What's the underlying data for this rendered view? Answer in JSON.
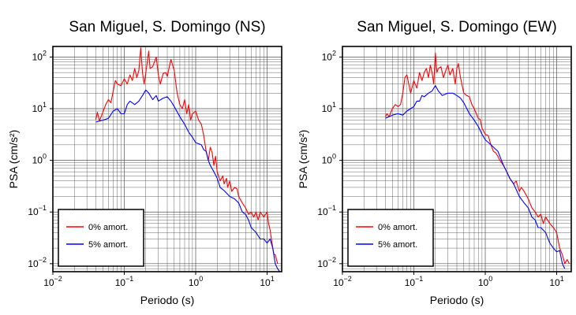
{
  "figure": {
    "panels": [
      {
        "title": "San Miguel, S. Domingo (NS)",
        "xlabel": "Periodo (s)",
        "ylabel": "PSA (cm/s²)"
      },
      {
        "title": "San Miguel, S. Domingo (EW)",
        "xlabel": "Periodo (s)",
        "ylabel": "PSA (cm/s²)"
      }
    ],
    "x_ticks": [
      {
        "value": 0.01,
        "base": "10",
        "exp": "−2"
      },
      {
        "value": 0.1,
        "base": "10",
        "exp": "−1"
      },
      {
        "value": 1,
        "base": "10",
        "exp": "0"
      },
      {
        "value": 10,
        "base": "10",
        "exp": "1"
      }
    ],
    "y_ticks": [
      {
        "value": 0.01,
        "base": "10",
        "exp": "−2"
      },
      {
        "value": 0.1,
        "base": "10",
        "exp": "−1"
      },
      {
        "value": 1,
        "base": "10",
        "exp": "0"
      },
      {
        "value": 10,
        "base": "10",
        "exp": "1"
      },
      {
        "value": 100,
        "base": "10",
        "exp": "2"
      }
    ],
    "colors": {
      "red": "#ff0000",
      "blue": "#0000ff",
      "grid": "#555555",
      "frame": "#000000"
    }
  },
  "chart_data": [
    {
      "type": "line",
      "title": "San Miguel, S. Domingo (NS)",
      "xlabel": "Periodo (s)",
      "ylabel": "PSA (cm/s²)",
      "x_scale": "log",
      "y_scale": "log",
      "xlim": [
        0.01,
        16
      ],
      "ylim": [
        0.007,
        160
      ],
      "grid": true,
      "legend_position": "bottom-left",
      "series": [
        {
          "name": "0% amort.",
          "color": "#ff0000",
          "points": [
            [
              0.04,
              6.2
            ],
            [
              0.042,
              8.5
            ],
            [
              0.045,
              5.8
            ],
            [
              0.05,
              8.5
            ],
            [
              0.055,
              12
            ],
            [
              0.06,
              15
            ],
            [
              0.065,
              13
            ],
            [
              0.07,
              22
            ],
            [
              0.075,
              35
            ],
            [
              0.08,
              30
            ],
            [
              0.09,
              28
            ],
            [
              0.1,
              38
            ],
            [
              0.11,
              30
            ],
            [
              0.12,
              45
            ],
            [
              0.13,
              35
            ],
            [
              0.14,
              60
            ],
            [
              0.15,
              40
            ],
            [
              0.16,
              55
            ],
            [
              0.17,
              150
            ],
            [
              0.18,
              50
            ],
            [
              0.19,
              30
            ],
            [
              0.2,
              50
            ],
            [
              0.22,
              130
            ],
            [
              0.23,
              60
            ],
            [
              0.25,
              65
            ],
            [
              0.28,
              100
            ],
            [
              0.3,
              45
            ],
            [
              0.32,
              30
            ],
            [
              0.35,
              48
            ],
            [
              0.38,
              50
            ],
            [
              0.4,
              42
            ],
            [
              0.45,
              90
            ],
            [
              0.5,
              55
            ],
            [
              0.55,
              20
            ],
            [
              0.6,
              12
            ],
            [
              0.65,
              10
            ],
            [
              0.7,
              15
            ],
            [
              0.75,
              8
            ],
            [
              0.8,
              12
            ],
            [
              0.85,
              6
            ],
            [
              0.9,
              8
            ],
            [
              1.0,
              9
            ],
            [
              1.1,
              6
            ],
            [
              1.2,
              5
            ],
            [
              1.3,
              3
            ],
            [
              1.4,
              1.5
            ],
            [
              1.5,
              1.0
            ],
            [
              1.6,
              1.8
            ],
            [
              1.7,
              1.4
            ],
            [
              1.8,
              0.8
            ],
            [
              1.9,
              1.2
            ],
            [
              2.0,
              0.6
            ],
            [
              2.2,
              0.4
            ],
            [
              2.4,
              0.5
            ],
            [
              2.5,
              0.35
            ],
            [
              2.7,
              0.45
            ],
            [
              2.8,
              0.3
            ],
            [
              3.0,
              0.4
            ],
            [
              3.2,
              0.25
            ],
            [
              3.5,
              0.3
            ],
            [
              3.8,
              0.28
            ],
            [
              4.0,
              0.2
            ],
            [
              4.5,
              0.15
            ],
            [
              5.0,
              0.12
            ],
            [
              5.5,
              0.09
            ],
            [
              6.0,
              0.1
            ],
            [
              6.5,
              0.08
            ],
            [
              7.0,
              0.1
            ],
            [
              7.5,
              0.07
            ],
            [
              8.0,
              0.1
            ],
            [
              9.0,
              0.08
            ],
            [
              10.0,
              0.1
            ],
            [
              10.5,
              0.06
            ],
            [
              11.0,
              0.045
            ],
            [
              12.0,
              0.02
            ],
            [
              12.5,
              0.015
            ],
            [
              13.0,
              0.015
            ],
            [
              14.0,
              0.01
            ]
          ]
        },
        {
          "name": "5% amort.",
          "color": "#0000ff",
          "points": [
            [
              0.04,
              5.5
            ],
            [
              0.05,
              6
            ],
            [
              0.06,
              6.5
            ],
            [
              0.07,
              9
            ],
            [
              0.08,
              10
            ],
            [
              0.09,
              8
            ],
            [
              0.1,
              8
            ],
            [
              0.11,
              12
            ],
            [
              0.12,
              14
            ],
            [
              0.14,
              12
            ],
            [
              0.16,
              14
            ],
            [
              0.18,
              18
            ],
            [
              0.2,
              23
            ],
            [
              0.22,
              20
            ],
            [
              0.25,
              15
            ],
            [
              0.28,
              18
            ],
            [
              0.3,
              14
            ],
            [
              0.35,
              16
            ],
            [
              0.4,
              17
            ],
            [
              0.45,
              14
            ],
            [
              0.5,
              11
            ],
            [
              0.6,
              7
            ],
            [
              0.7,
              5
            ],
            [
              0.8,
              3.5
            ],
            [
              0.9,
              2.8
            ],
            [
              1.0,
              2.2
            ],
            [
              1.2,
              2
            ],
            [
              1.3,
              1.6
            ],
            [
              1.4,
              1.5
            ],
            [
              1.5,
              1.0
            ],
            [
              1.6,
              0.8
            ],
            [
              1.8,
              0.6
            ],
            [
              2.0,
              0.45
            ],
            [
              2.2,
              0.3
            ],
            [
              2.5,
              0.26
            ],
            [
              3.0,
              0.2
            ],
            [
              3.5,
              0.18
            ],
            [
              4.0,
              0.15
            ],
            [
              4.5,
              0.1
            ],
            [
              5.0,
              0.09
            ],
            [
              5.5,
              0.07
            ],
            [
              6.0,
              0.05
            ],
            [
              7.0,
              0.04
            ],
            [
              8.0,
              0.03
            ],
            [
              9.0,
              0.03
            ],
            [
              10.0,
              0.025
            ],
            [
              11.0,
              0.03
            ],
            [
              12.0,
              0.02
            ],
            [
              13.0,
              0.01
            ],
            [
              14.0,
              0.008
            ],
            [
              15.0,
              0.007
            ]
          ]
        }
      ]
    },
    {
      "type": "line",
      "title": "San Miguel, S. Domingo (EW)",
      "xlabel": "Periodo (s)",
      "ylabel": "PSA (cm/s²)",
      "x_scale": "log",
      "y_scale": "log",
      "xlim": [
        0.01,
        16
      ],
      "ylim": [
        0.007,
        160
      ],
      "grid": true,
      "legend_position": "bottom-left",
      "series": [
        {
          "name": "0% amort.",
          "color": "#ff0000",
          "points": [
            [
              0.04,
              7
            ],
            [
              0.042,
              8
            ],
            [
              0.045,
              7
            ],
            [
              0.05,
              10
            ],
            [
              0.055,
              12
            ],
            [
              0.06,
              11
            ],
            [
              0.065,
              12
            ],
            [
              0.07,
              20
            ],
            [
              0.075,
              40
            ],
            [
              0.08,
              45
            ],
            [
              0.09,
              20
            ],
            [
              0.1,
              35
            ],
            [
              0.11,
              25
            ],
            [
              0.12,
              50
            ],
            [
              0.13,
              35
            ],
            [
              0.14,
              50
            ],
            [
              0.15,
              60
            ],
            [
              0.16,
              40
            ],
            [
              0.17,
              70
            ],
            [
              0.18,
              50
            ],
            [
              0.19,
              30
            ],
            [
              0.2,
              120
            ],
            [
              0.21,
              50
            ],
            [
              0.22,
              60
            ],
            [
              0.24,
              65
            ],
            [
              0.25,
              50
            ],
            [
              0.26,
              40
            ],
            [
              0.28,
              55
            ],
            [
              0.3,
              70
            ],
            [
              0.32,
              45
            ],
            [
              0.35,
              60
            ],
            [
              0.38,
              30
            ],
            [
              0.4,
              60
            ],
            [
              0.42,
              75
            ],
            [
              0.45,
              40
            ],
            [
              0.5,
              20
            ],
            [
              0.55,
              18
            ],
            [
              0.6,
              17
            ],
            [
              0.65,
              12
            ],
            [
              0.7,
              10
            ],
            [
              0.75,
              8
            ],
            [
              0.8,
              6.5
            ],
            [
              0.85,
              6.2
            ],
            [
              0.9,
              4.2
            ],
            [
              1.0,
              3.2
            ],
            [
              1.1,
              3
            ],
            [
              1.2,
              2
            ],
            [
              1.3,
              1.5
            ],
            [
              1.4,
              1.4
            ],
            [
              1.5,
              1.2
            ],
            [
              1.6,
              1.0
            ],
            [
              1.8,
              0.8
            ],
            [
              2.0,
              0.6
            ],
            [
              2.2,
              0.45
            ],
            [
              2.5,
              0.35
            ],
            [
              2.7,
              0.4
            ],
            [
              3.0,
              0.25
            ],
            [
              3.2,
              0.3
            ],
            [
              3.5,
              0.25
            ],
            [
              4.0,
              0.18
            ],
            [
              4.5,
              0.12
            ],
            [
              5.0,
              0.1
            ],
            [
              5.5,
              0.08
            ],
            [
              6.0,
              0.09
            ],
            [
              6.5,
              0.06
            ],
            [
              7.0,
              0.08
            ],
            [
              8.0,
              0.06
            ],
            [
              9.0,
              0.05
            ],
            [
              10.0,
              0.04
            ],
            [
              11.0,
              0.02
            ],
            [
              12.0,
              0.015
            ],
            [
              13.0,
              0.01
            ],
            [
              14.0,
              0.012
            ],
            [
              15.0,
              0.01
            ]
          ]
        },
        {
          "name": "5% amort.",
          "color": "#0000ff",
          "points": [
            [
              0.04,
              6.5
            ],
            [
              0.05,
              7.5
            ],
            [
              0.06,
              8
            ],
            [
              0.07,
              7.5
            ],
            [
              0.08,
              9
            ],
            [
              0.09,
              10
            ],
            [
              0.1,
              11
            ],
            [
              0.11,
              14
            ],
            [
              0.12,
              14
            ],
            [
              0.13,
              18
            ],
            [
              0.14,
              17
            ],
            [
              0.16,
              20
            ],
            [
              0.18,
              22
            ],
            [
              0.2,
              28
            ],
            [
              0.22,
              22
            ],
            [
              0.25,
              18
            ],
            [
              0.3,
              20
            ],
            [
              0.35,
              20
            ],
            [
              0.4,
              18
            ],
            [
              0.45,
              16
            ],
            [
              0.5,
              13
            ],
            [
              0.6,
              8
            ],
            [
              0.7,
              6
            ],
            [
              0.8,
              4.5
            ],
            [
              0.9,
              3.2
            ],
            [
              1.0,
              2.5
            ],
            [
              1.2,
              2.0
            ],
            [
              1.5,
              1.5
            ],
            [
              1.8,
              0.8
            ],
            [
              2.0,
              0.6
            ],
            [
              2.2,
              0.45
            ],
            [
              2.5,
              0.35
            ],
            [
              3.0,
              0.2
            ],
            [
              3.5,
              0.15
            ],
            [
              4.0,
              0.12
            ],
            [
              4.5,
              0.08
            ],
            [
              5.0,
              0.07
            ],
            [
              5.5,
              0.05
            ],
            [
              6.0,
              0.05
            ],
            [
              7.0,
              0.04
            ],
            [
              8.0,
              0.025
            ],
            [
              9.0,
              0.02
            ],
            [
              10.0,
              0.017
            ],
            [
              11.0,
              0.018
            ],
            [
              12.0,
              0.01
            ],
            [
              13.0,
              0.008
            ]
          ]
        }
      ]
    }
  ]
}
